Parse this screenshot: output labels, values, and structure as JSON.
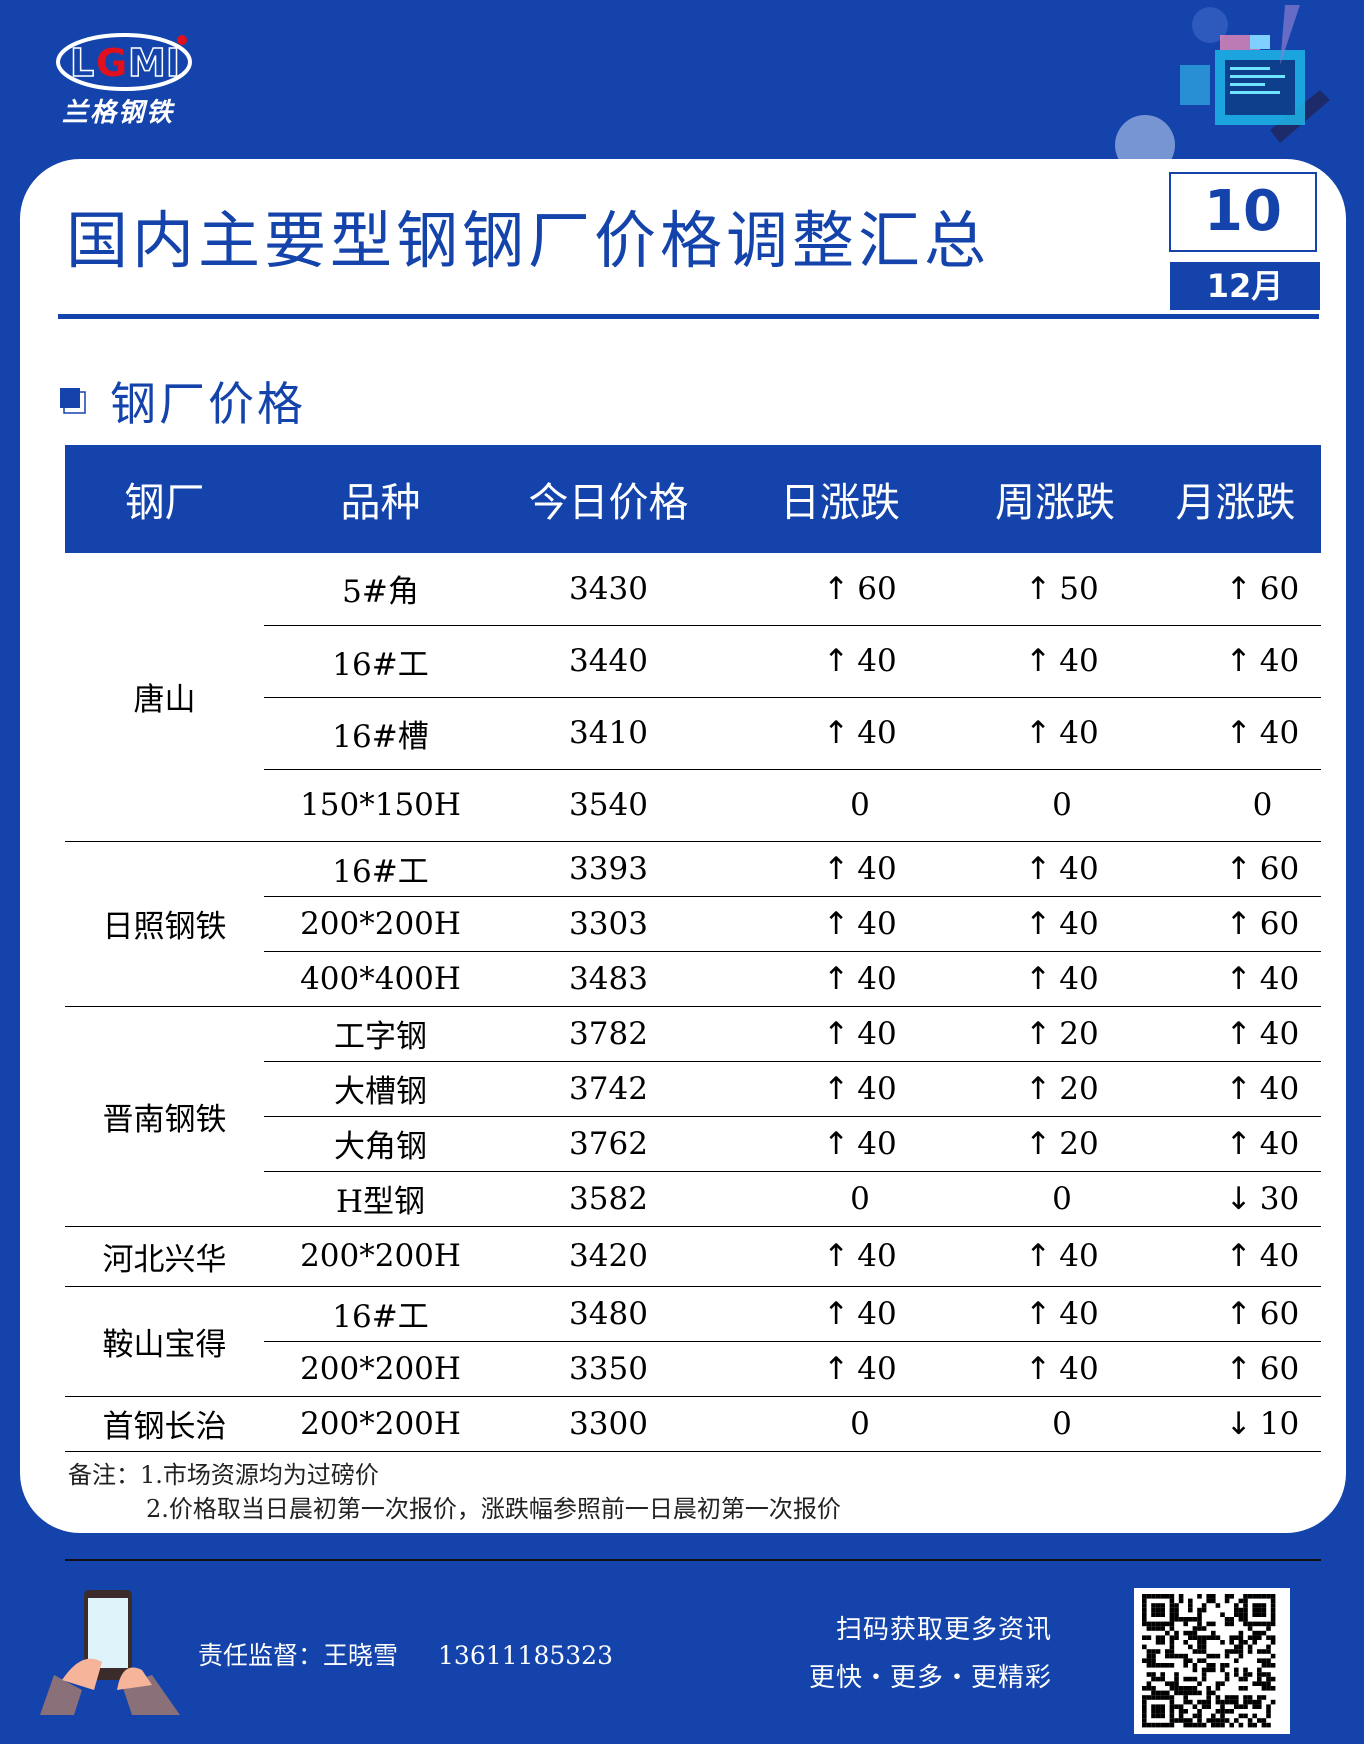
{
  "brand": {
    "logo_text": "LGMI",
    "name": "兰格钢铁"
  },
  "header": {
    "title": "国内主要型钢钢厂价格调整汇总",
    "day": "10",
    "month": "12月"
  },
  "section": {
    "title": "钢厂价格"
  },
  "colors": {
    "brand_blue": "#1343ab",
    "up": "#ff0000",
    "down": "#70ad47"
  },
  "table": {
    "headers": [
      "钢厂",
      "品种",
      "今日价格",
      "日涨跌",
      "周涨跌",
      "月涨跌"
    ],
    "groups": [
      {
        "mill": "唐山",
        "rows": [
          {
            "variety": "5#角",
            "price": "3430",
            "day": {
              "dir": "up",
              "val": "60"
            },
            "week": {
              "dir": "up",
              "val": "50"
            },
            "month": {
              "dir": "up",
              "val": "60"
            }
          },
          {
            "variety": "16#工",
            "price": "3440",
            "day": {
              "dir": "up",
              "val": "40"
            },
            "week": {
              "dir": "up",
              "val": "40"
            },
            "month": {
              "dir": "up",
              "val": "40"
            }
          },
          {
            "variety": "16#槽",
            "price": "3410",
            "day": {
              "dir": "up",
              "val": "40"
            },
            "week": {
              "dir": "up",
              "val": "40"
            },
            "month": {
              "dir": "up",
              "val": "40"
            }
          },
          {
            "variety": "150*150H",
            "price": "3540",
            "day": {
              "dir": "flat",
              "val": "0"
            },
            "week": {
              "dir": "flat",
              "val": "0"
            },
            "month": {
              "dir": "flat",
              "val": "0"
            }
          }
        ]
      },
      {
        "mill": "日照钢铁",
        "rows": [
          {
            "variety": "16#工",
            "price": "3393",
            "day": {
              "dir": "up",
              "val": "40"
            },
            "week": {
              "dir": "up",
              "val": "40"
            },
            "month": {
              "dir": "up",
              "val": "60"
            }
          },
          {
            "variety": "200*200H",
            "price": "3303",
            "day": {
              "dir": "up",
              "val": "40"
            },
            "week": {
              "dir": "up",
              "val": "40"
            },
            "month": {
              "dir": "up",
              "val": "60"
            }
          },
          {
            "variety": "400*400H",
            "price": "3483",
            "day": {
              "dir": "up",
              "val": "40"
            },
            "week": {
              "dir": "up",
              "val": "40"
            },
            "month": {
              "dir": "up",
              "val": "40"
            }
          }
        ]
      },
      {
        "mill": "晋南钢铁",
        "rows": [
          {
            "variety": "工字钢",
            "price": "3782",
            "day": {
              "dir": "up",
              "val": "40"
            },
            "week": {
              "dir": "up",
              "val": "20"
            },
            "month": {
              "dir": "up",
              "val": "40"
            }
          },
          {
            "variety": "大槽钢",
            "price": "3742",
            "day": {
              "dir": "up",
              "val": "40"
            },
            "week": {
              "dir": "up",
              "val": "20"
            },
            "month": {
              "dir": "up",
              "val": "40"
            }
          },
          {
            "variety": "大角钢",
            "price": "3762",
            "day": {
              "dir": "up",
              "val": "40"
            },
            "week": {
              "dir": "up",
              "val": "20"
            },
            "month": {
              "dir": "up",
              "val": "40"
            }
          },
          {
            "variety": "H型钢",
            "price": "3582",
            "day": {
              "dir": "flat",
              "val": "0"
            },
            "week": {
              "dir": "flat",
              "val": "0"
            },
            "month": {
              "dir": "down",
              "val": "30"
            }
          }
        ]
      },
      {
        "mill": "河北兴华",
        "rows": [
          {
            "variety": "200*200H",
            "price": "3420",
            "day": {
              "dir": "up",
              "val": "40"
            },
            "week": {
              "dir": "up",
              "val": "40"
            },
            "month": {
              "dir": "up",
              "val": "40"
            }
          }
        ]
      },
      {
        "mill": "鞍山宝得",
        "rows": [
          {
            "variety": "16#工",
            "price": "3480",
            "day": {
              "dir": "up",
              "val": "40"
            },
            "week": {
              "dir": "up",
              "val": "40"
            },
            "month": {
              "dir": "up",
              "val": "60"
            }
          },
          {
            "variety": "200*200H",
            "price": "3350",
            "day": {
              "dir": "up",
              "val": "40"
            },
            "week": {
              "dir": "up",
              "val": "40"
            },
            "month": {
              "dir": "up",
              "val": "60"
            }
          }
        ]
      },
      {
        "mill": "首钢长治",
        "rows": [
          {
            "variety": "200*200H",
            "price": "3300",
            "day": {
              "dir": "flat",
              "val": "0"
            },
            "week": {
              "dir": "flat",
              "val": "0"
            },
            "month": {
              "dir": "down",
              "val": "10"
            }
          }
        ]
      }
    ]
  },
  "notes": {
    "line1": "备注：1.市场资源均为过磅价",
    "line2": "2.价格取当日晨初第一次报价，涨跌幅参照前一日晨初第一次报价"
  },
  "footer": {
    "supervisor": "责任监督：王晓雪",
    "phone": "13611185323",
    "scan_text": "扫码获取更多资讯",
    "slogan": "更快・更多・更精彩"
  }
}
